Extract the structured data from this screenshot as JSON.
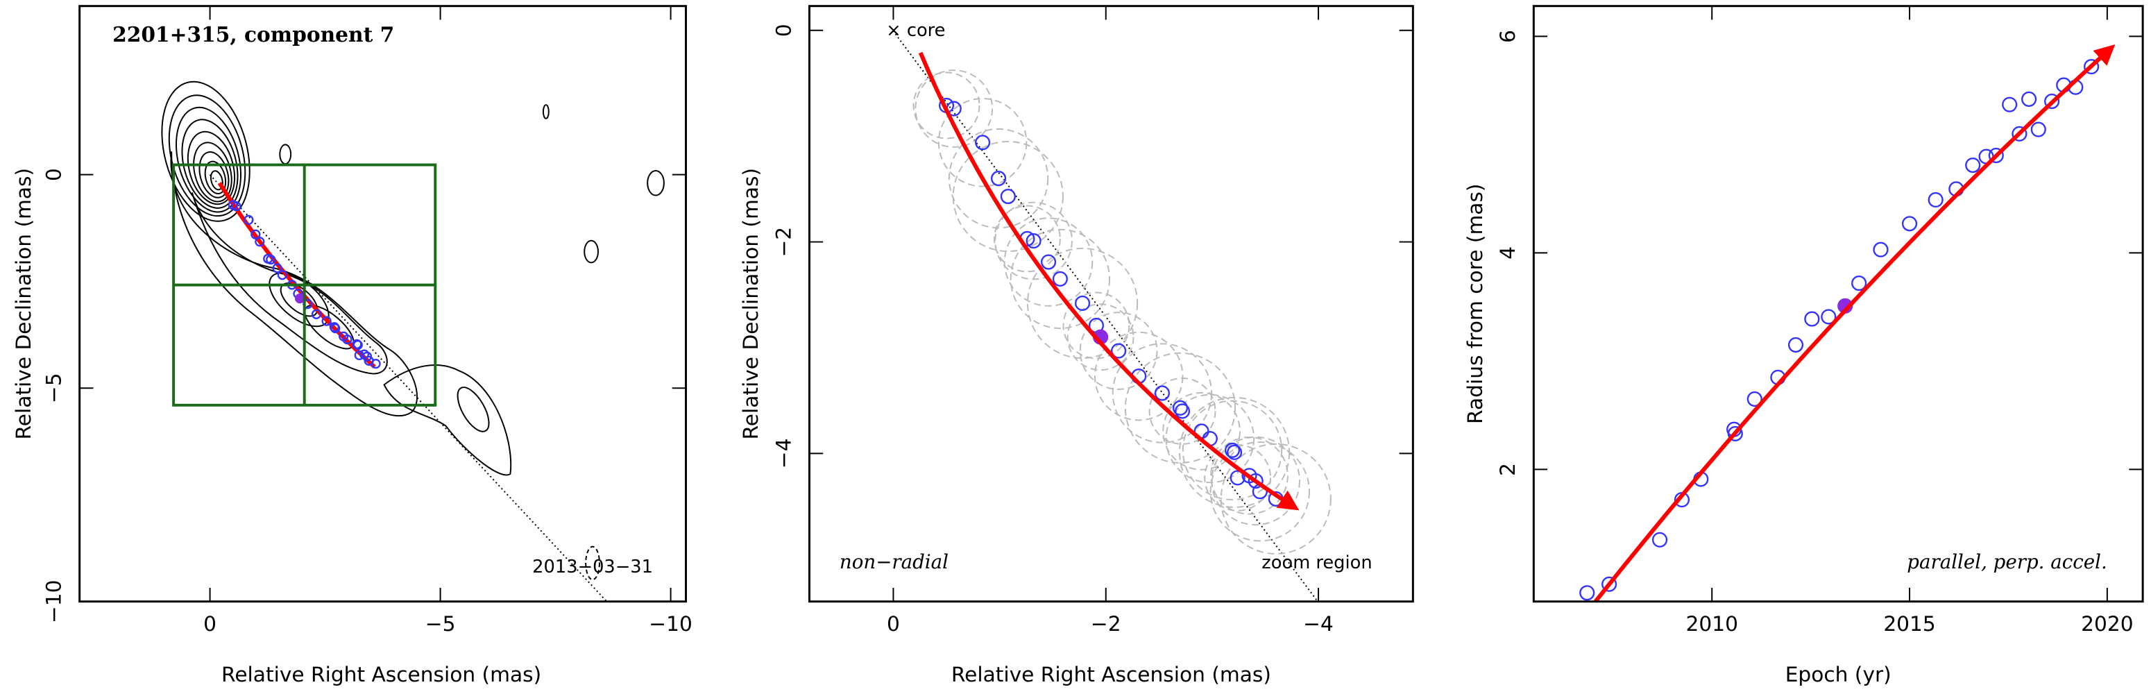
{
  "chart_data": [
    {
      "type": "contour",
      "title": "2201+315, component 7",
      "x_label": "Relative Right Ascension (mas)",
      "y_label": "Relative Declination (mas)",
      "annotation": "2013−03−31",
      "xlim": [
        2.83,
        -10.33
      ],
      "ylim": [
        -10,
        3.95
      ],
      "xticks": [
        0,
        {
          "value": -5,
          "label": "−5"
        },
        {
          "value": -10,
          "label": "−10"
        }
      ],
      "yticks": [
        0,
        {
          "value": -5,
          "label": "−5"
        },
        {
          "value": -10,
          "label": "−10"
        }
      ],
      "contour_color": "#000000",
      "zoom_color": "#1a6b1a"
    },
    {
      "type": "scatter",
      "x_label": "Relative Right Ascension (mas)",
      "y_label": "Relative Declination (mas)",
      "annotations": [
        "× core",
        "non−radial",
        "zoom region"
      ],
      "xlim": [
        0.79,
        -4.89
      ],
      "ylim": [
        -5.4,
        0.23
      ],
      "xticks": [
        0,
        {
          "value": -2,
          "label": "−2"
        },
        {
          "value": -4,
          "label": "−4"
        }
      ],
      "yticks": [
        0,
        {
          "value": -2,
          "label": "−2"
        },
        {
          "value": -4,
          "label": "−4"
        }
      ],
      "series": [
        {
          "color": "#3333ff",
          "filled": false,
          "x": [
            -0.5,
            -0.57,
            -0.84,
            -0.99,
            -1.08,
            -1.26,
            -1.32,
            -1.46,
            -1.57,
            -1.78,
            -1.91,
            -2.12,
            -2.31,
            -2.53,
            -2.7,
            -2.72,
            -2.9,
            -2.98,
            -3.19,
            -3.21,
            -3.24,
            -3.35,
            -3.41,
            -3.45,
            -3.6
          ],
          "values": [
            -0.71,
            -0.74,
            -1.06,
            -1.4,
            -1.57,
            -1.97,
            -1.99,
            -2.19,
            -2.35,
            -2.58,
            -2.79,
            -3.03,
            -3.27,
            -3.43,
            -3.57,
            -3.6,
            -3.79,
            -3.86,
            -3.97,
            -3.99,
            -4.23,
            -4.21,
            -4.26,
            -4.36,
            -4.43
          ]
        },
        {
          "color": "#8a2be2",
          "filled": true,
          "x": [
            -1.95
          ],
          "values": [
            -2.9
          ]
        }
      ]
    },
    {
      "type": "scatter",
      "x_label": "Epoch (yr)",
      "y_label": "Radius from core (mas)",
      "annotation": "parallel, perp. accel.",
      "xlim": [
        2005.49,
        2020.9
      ],
      "ylim": [
        0.78,
        6.28
      ],
      "xticks": [
        2010,
        2015,
        2020
      ],
      "yticks": [
        2,
        4,
        6
      ],
      "series": [
        {
          "color": "#3333ff",
          "filled": false,
          "x": [
            2006.84,
            2007.4,
            2008.68,
            2009.24,
            2009.72,
            2010.56,
            2010.59,
            2011.08,
            2011.67,
            2012.12,
            2012.53,
            2012.95,
            2013.72,
            2014.27,
            2015.0,
            2015.66,
            2016.18,
            2016.6,
            2016.94,
            2017.19,
            2017.53,
            2017.78,
            2018.02,
            2018.26,
            2018.6,
            2018.9,
            2019.2,
            2019.6
          ],
          "values": [
            0.86,
            0.94,
            1.35,
            1.72,
            1.91,
            2.37,
            2.33,
            2.65,
            2.85,
            3.15,
            3.39,
            3.41,
            3.72,
            4.03,
            4.27,
            4.49,
            4.59,
            4.81,
            4.89,
            4.9,
            5.37,
            5.1,
            5.42,
            5.14,
            5.4,
            5.55,
            5.53,
            5.72
          ]
        },
        {
          "color": "#8a2be2",
          "filled": true,
          "x": [
            2013.37
          ],
          "values": [
            3.51
          ]
        }
      ]
    }
  ]
}
